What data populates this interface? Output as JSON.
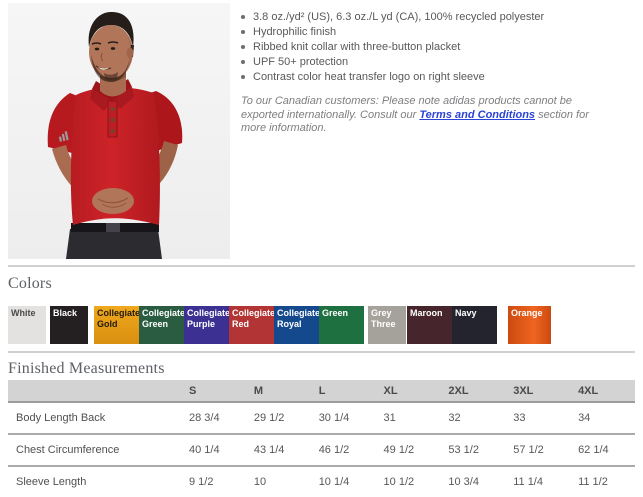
{
  "theme": {
    "link_color": "#2b43d6",
    "body_text_color": "#58595b",
    "heading_color": "#5d6066",
    "polo_red": "#c82127"
  },
  "product": {
    "photo_alt": "man-wearing-red-adidas-polo",
    "bullets": [
      "3.8 oz./yd² (US), 6.3 oz./L yd (CA), 100% recycled polyester",
      "Hydrophilic finish",
      "Ribbed knit collar with three-button placket",
      "UPF 50+ protection",
      "Contrast color heat transfer logo on right sleeve"
    ],
    "note": {
      "prefix": "To our Canadian customers: Please note adidas products cannot be exported internationally. Consult our ",
      "link_text": "Terms and Conditions",
      "suffix": " section for more information."
    }
  },
  "colors_section": {
    "title": "Colors",
    "swatches": [
      {
        "label": "White",
        "bg": "#e3e2e0",
        "fg": "#4a4a4a"
      },
      {
        "label": "Black",
        "bg": "#242021",
        "fg": "#ffffff"
      },
      {
        "label": "Collegiate Gold",
        "bg": "#f0a81d",
        "bg_end": "#d98f10",
        "fg": "#211b10"
      },
      {
        "label": "Collegiate Green",
        "bg": "#2a5c41",
        "fg": "#ffffff"
      },
      {
        "label": "Collegiate Purple",
        "bg": "#3c3193",
        "fg": "#ffffff"
      },
      {
        "label": "Collegiate Red",
        "bg": "#b23434",
        "fg": "#ffffff"
      },
      {
        "label": "Collegiate Royal",
        "bg": "#15498e",
        "fg": "#ffffff"
      },
      {
        "label": "Green",
        "bg": "#1e7040",
        "fg": "#ffffff"
      },
      {
        "label": "Grey Three",
        "bg": "#a5a29b",
        "fg": "#ffffff"
      },
      {
        "label": "Maroon",
        "bg": "#46262c",
        "fg": "#ffffff"
      },
      {
        "label": "Navy",
        "bg": "#23242e",
        "fg": "#ffffff"
      },
      {
        "label": "Orange",
        "bg": "#cc4a10",
        "bg_end": "#ef6420",
        "fg": "#ffffff"
      }
    ]
  },
  "measurements": {
    "title": "Finished Measurements",
    "columns": [
      "",
      "S",
      "M",
      "L",
      "XL",
      "2XL",
      "3XL",
      "4XL"
    ],
    "rows": [
      {
        "label": "Body Length Back",
        "values": [
          "28 3/4",
          "29 1/2",
          "30 1/4",
          "31",
          "32",
          "33",
          "34"
        ]
      },
      {
        "label": "Chest Circumference",
        "values": [
          "40 1/4",
          "43 1/4",
          "46 1/2",
          "49 1/2",
          "53 1/2",
          "57 1/2",
          "62 1/4"
        ]
      },
      {
        "label": "Sleeve Length",
        "values": [
          "9 1/2",
          "10",
          "10 1/4",
          "10 1/2",
          "10 3/4",
          "11 1/4",
          "11 1/2"
        ]
      }
    ]
  }
}
